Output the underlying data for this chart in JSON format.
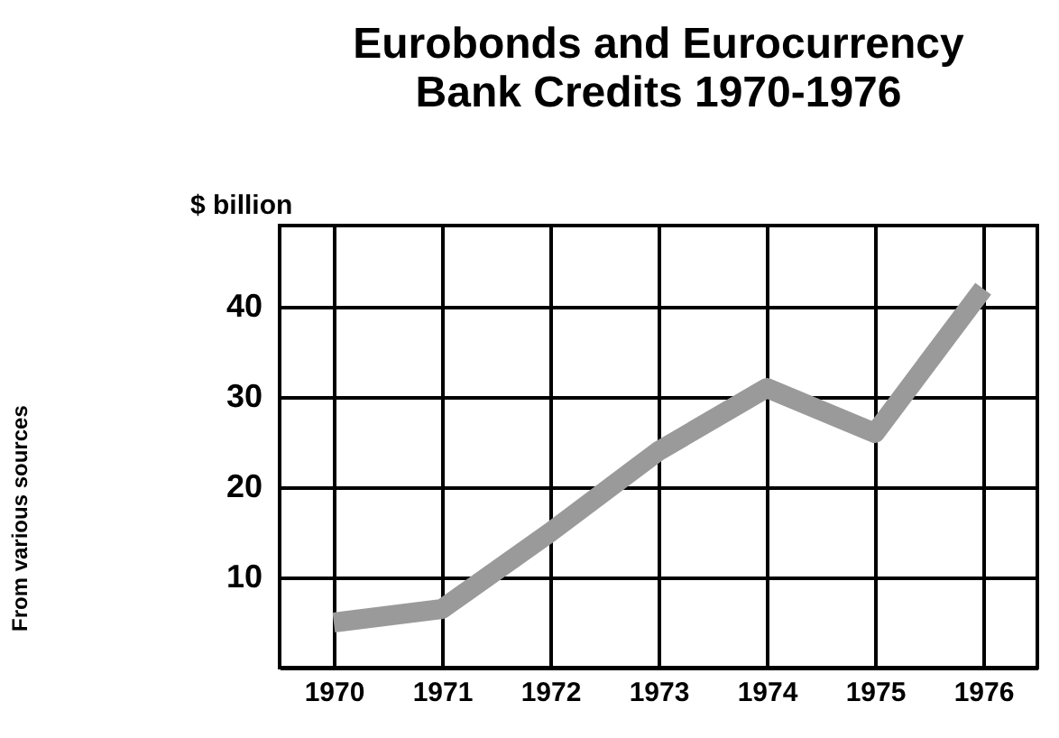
{
  "chart_data": {
    "type": "line",
    "title": [
      "Eurobonds and Eurocurrency",
      "Bank Credits 1970-1976"
    ],
    "ylabel": "$ billion",
    "annotations": [
      "From various sources"
    ],
    "categories": [
      "1970",
      "1971",
      "1972",
      "1973",
      "1974",
      "1975",
      "1976"
    ],
    "series": [
      {
        "color": "#9a9a9a",
        "values": [
          5,
          6.5,
          15,
          24,
          31,
          26,
          42
        ]
      }
    ],
    "ylim": [
      0,
      49
    ],
    "yticks": [
      10,
      20,
      30,
      40
    ],
    "grid": true,
    "marker": "none",
    "line_style": "solid"
  }
}
